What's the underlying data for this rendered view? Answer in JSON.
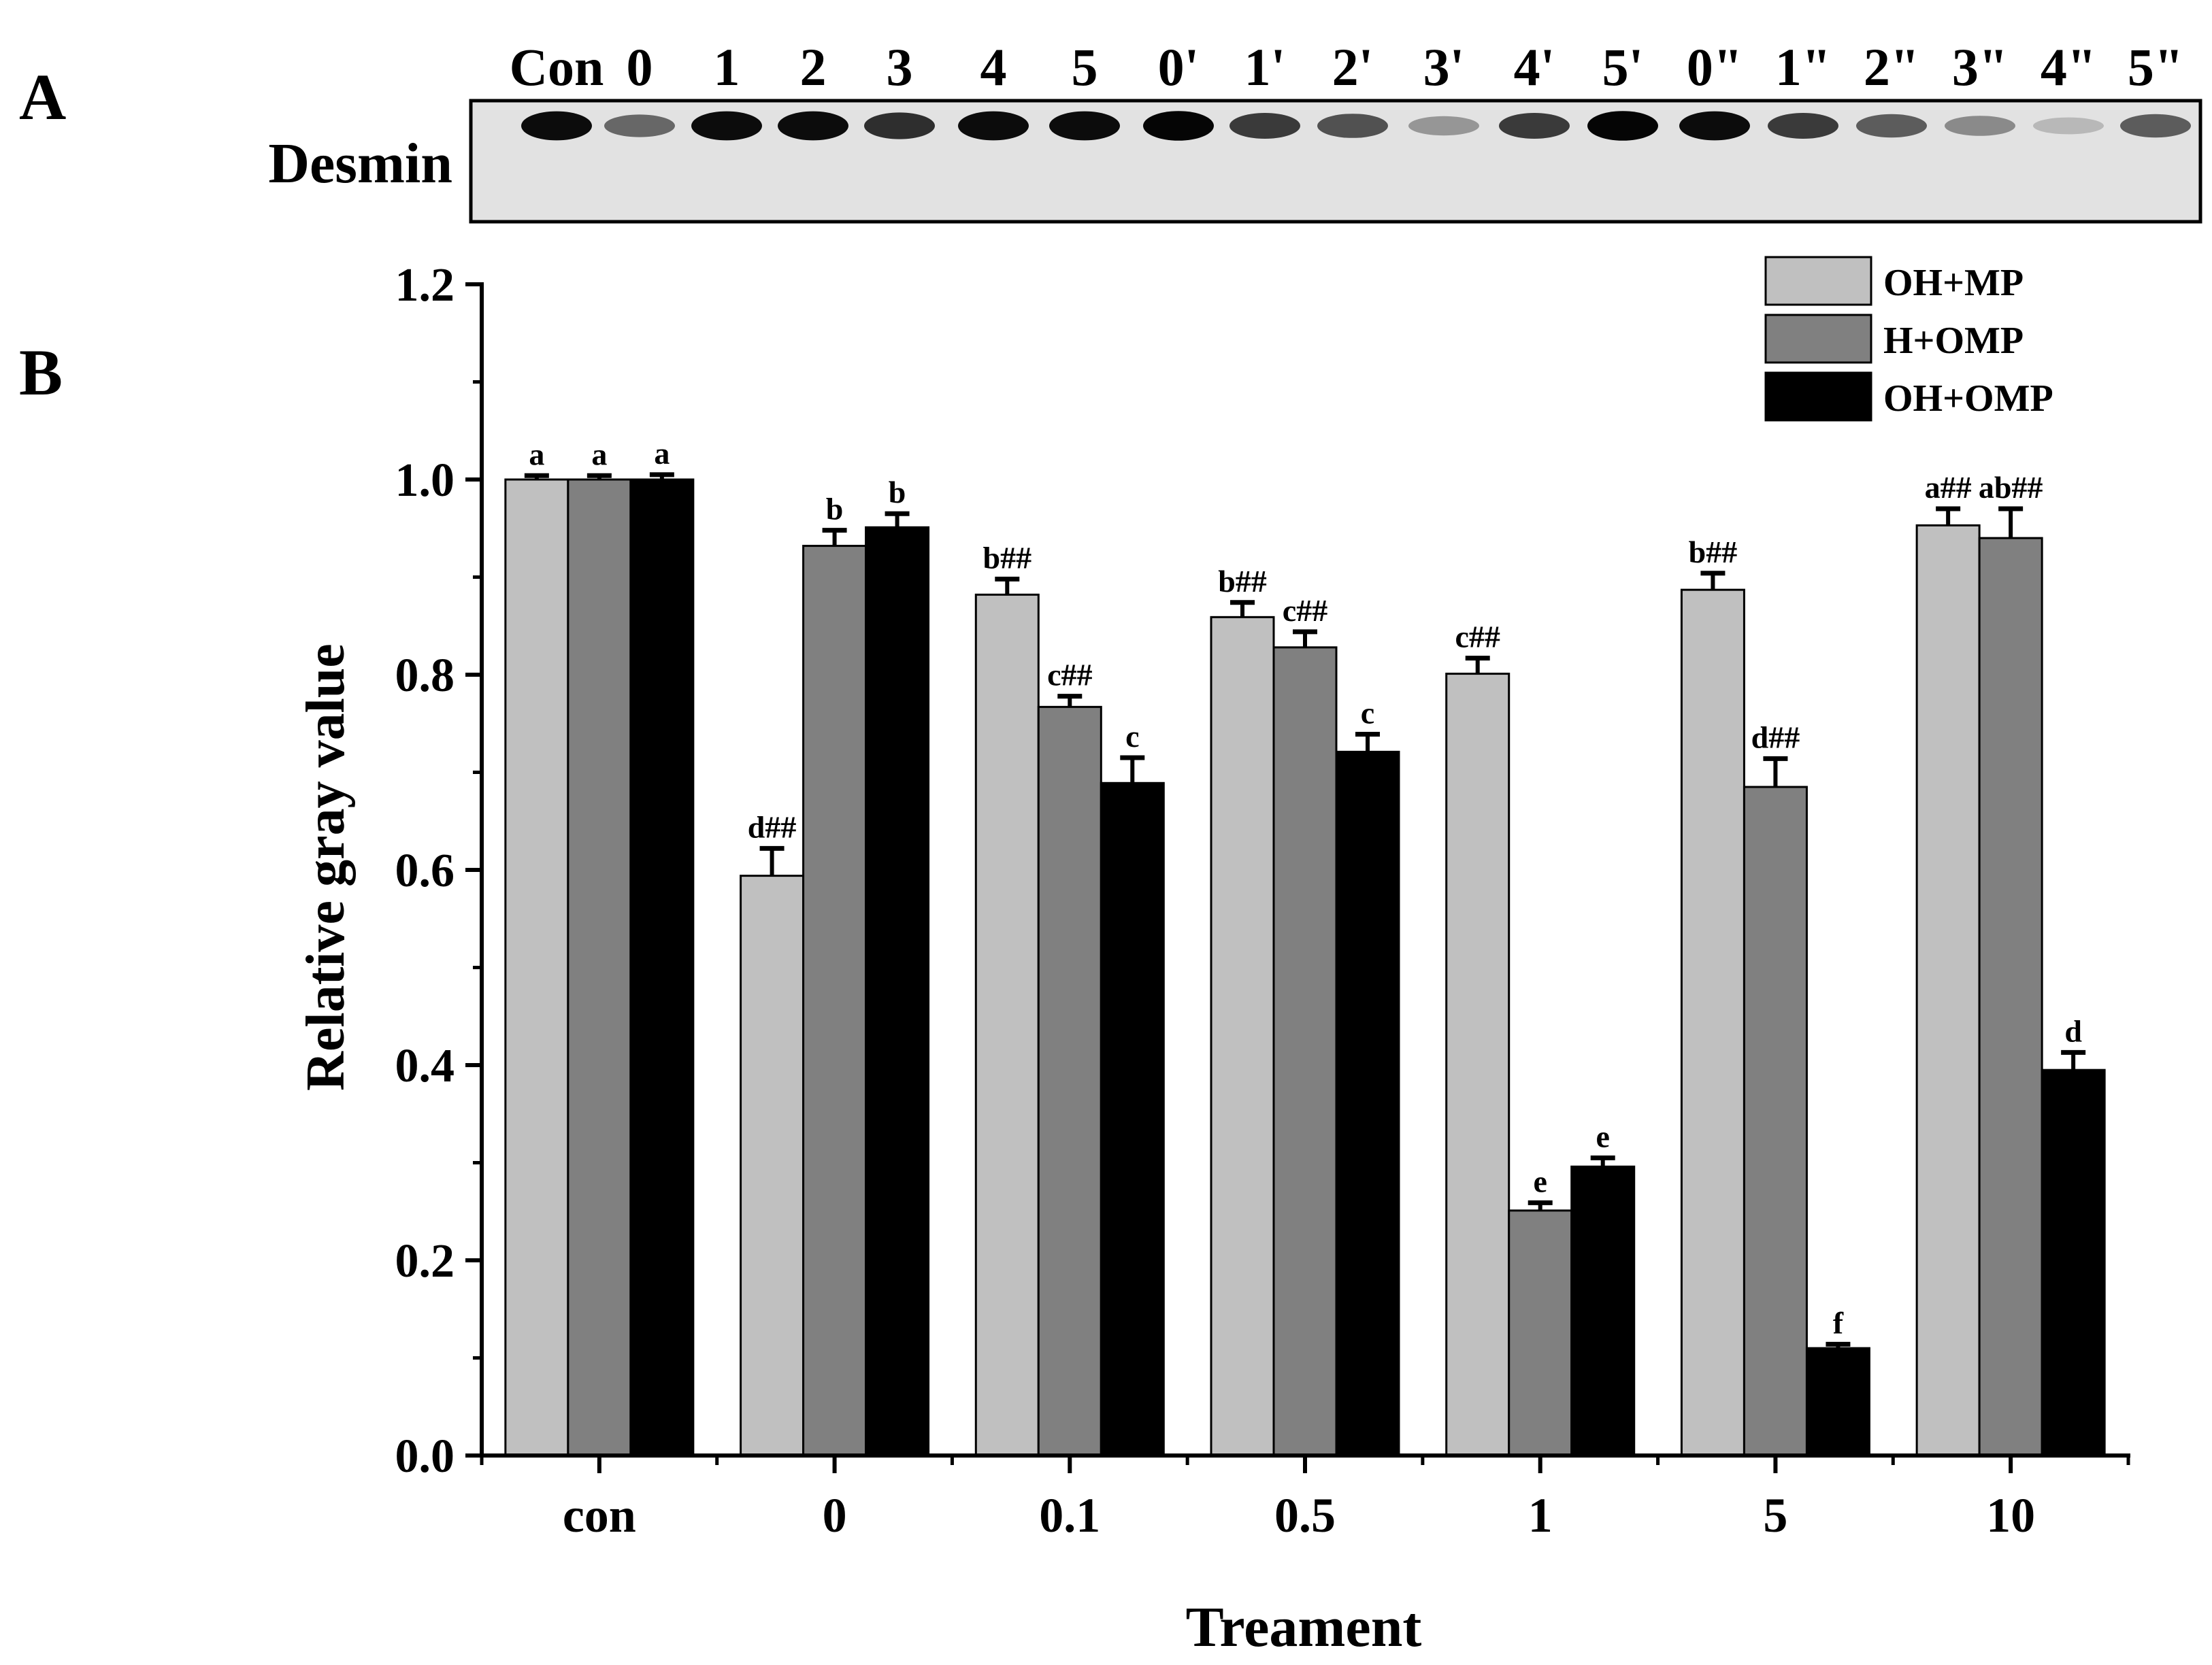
{
  "panel_a": {
    "letter": "A",
    "row_label": "Desmin",
    "lanes": [
      "Con",
      "0",
      "1",
      "2",
      "3",
      "4",
      "5",
      "0'",
      "1'",
      "2'",
      "3'",
      "4'",
      "5'",
      "0\"",
      "1\"",
      "2\"",
      "3\"",
      "4\"",
      "5\""
    ],
    "band_intensity": [
      0.95,
      0.55,
      0.95,
      0.95,
      0.8,
      0.95,
      0.95,
      0.98,
      0.75,
      0.65,
      0.35,
      0.75,
      0.98,
      0.95,
      0.75,
      0.6,
      0.4,
      0.2,
      0.6
    ]
  },
  "panel_b": {
    "letter": "B"
  },
  "colors": {
    "OH+MP": "#c0c0c0",
    "H+OMP": "#808080",
    "OH+OMP": "#000000"
  },
  "chart_data": {
    "type": "bar",
    "title": "",
    "xlabel": "Treament",
    "ylabel": "Relative gray value",
    "ylim": [
      0,
      1.2
    ],
    "yticks": [
      "0.0",
      "0.2",
      "0.4",
      "0.6",
      "0.8",
      "1.0",
      "1.2"
    ],
    "categories": [
      "con",
      "0",
      "0.1",
      "0.5",
      "1",
      "5",
      "10"
    ],
    "legend_position": "top-right",
    "series": [
      {
        "name": "OH+MP",
        "values": [
          1.0,
          0.594,
          0.882,
          0.859,
          0.801,
          0.887,
          0.953
        ],
        "errors": [
          0.004,
          0.028,
          0.016,
          0.015,
          0.016,
          0.017,
          0.017
        ],
        "labels": [
          "a",
          "d##",
          "b##",
          "b##",
          "c##",
          "b##",
          "a##"
        ]
      },
      {
        "name": "H+OMP",
        "values": [
          1.0,
          0.932,
          0.767,
          0.828,
          0.251,
          0.685,
          0.94
        ],
        "errors": [
          0.004,
          0.016,
          0.011,
          0.016,
          0.008,
          0.029,
          0.03
        ],
        "labels": [
          "a",
          "b",
          "c##",
          "c##",
          "e",
          "d##",
          "ab##"
        ]
      },
      {
        "name": "OH+OMP",
        "values": [
          1.0,
          0.951,
          0.689,
          0.721,
          0.296,
          0.11,
          0.395
        ],
        "errors": [
          0.005,
          0.014,
          0.026,
          0.018,
          0.009,
          0.004,
          0.018
        ],
        "labels": [
          "a",
          "b",
          "c",
          "c",
          "e",
          "f",
          "d"
        ]
      }
    ]
  }
}
